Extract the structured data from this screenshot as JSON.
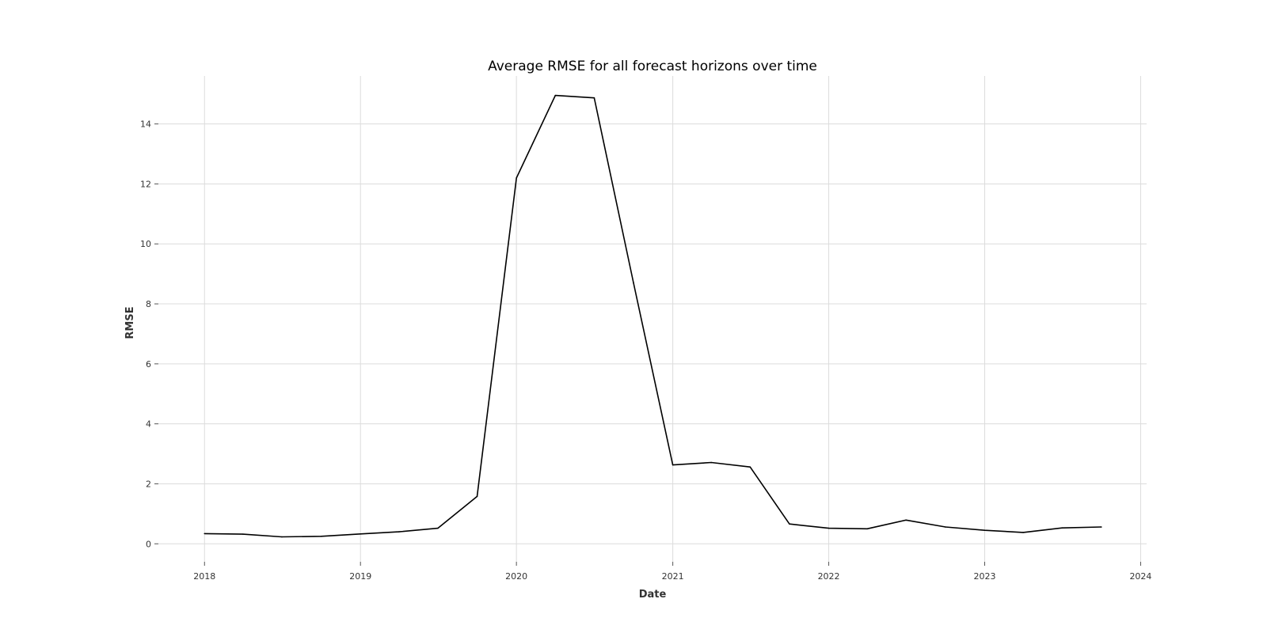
{
  "chart_data": {
    "type": "line",
    "title": "Average RMSE for all forecast horizons over time",
    "xlabel": "Date",
    "ylabel": "RMSE",
    "x_ticks": [
      "2018",
      "2019",
      "2020",
      "2021",
      "2022",
      "2023",
      "2024"
    ],
    "y_ticks": [
      0,
      2,
      4,
      6,
      8,
      10,
      12,
      14
    ],
    "xlim": [
      "2017-09-15",
      "2024-01-15"
    ],
    "ylim": [
      -0.6,
      15.6
    ],
    "grid": true,
    "line_color": "#000000",
    "x": [
      "2018-01-01",
      "2018-04-01",
      "2018-07-01",
      "2018-10-01",
      "2019-01-01",
      "2019-04-01",
      "2019-07-01",
      "2019-10-01",
      "2020-01-01",
      "2020-04-01",
      "2020-07-01",
      "2020-10-01",
      "2021-01-01",
      "2021-04-01",
      "2021-07-01",
      "2021-10-01",
      "2022-01-01",
      "2022-04-01",
      "2022-07-01",
      "2022-10-01",
      "2023-01-01",
      "2023-04-01",
      "2023-07-01",
      "2023-10-01"
    ],
    "series": [
      {
        "values": [
          0.34,
          0.32,
          0.23,
          0.25,
          0.33,
          0.4,
          0.52,
          1.58,
          12.2,
          14.95,
          14.87,
          8.7,
          2.63,
          2.71,
          2.56,
          0.66,
          0.52,
          0.5,
          0.79,
          0.56,
          0.45,
          0.38,
          0.53,
          0.56
        ]
      }
    ]
  }
}
